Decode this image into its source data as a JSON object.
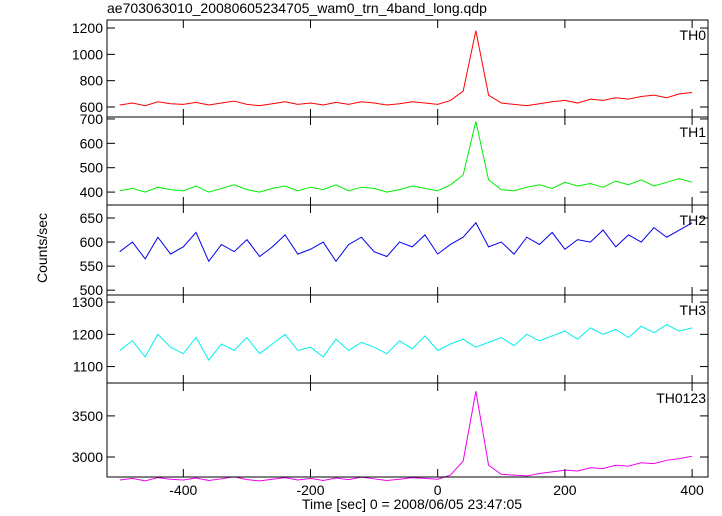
{
  "chart_data": {
    "type": "line",
    "title": "ae703063010_20080605234705_wam0_trn_4band_long.qdp",
    "xlabel": "Time [sec] 0 = 2008/06/05 23:47:05",
    "ylabel": "Counts/sec",
    "x": [
      -500,
      -480,
      -460,
      -440,
      -420,
      -400,
      -380,
      -360,
      -340,
      -320,
      -300,
      -280,
      -260,
      -240,
      -220,
      -200,
      -180,
      -160,
      -140,
      -120,
      -100,
      -80,
      -60,
      -40,
      -20,
      0,
      20,
      40,
      60,
      80,
      100,
      120,
      140,
      160,
      180,
      200,
      220,
      240,
      260,
      280,
      300,
      320,
      340,
      360,
      380,
      400
    ],
    "xlim": [
      -520,
      425
    ],
    "xticks": [
      -400,
      -200,
      0,
      200,
      400
    ],
    "series": [
      {
        "name": "TH0",
        "color": "#ff0000",
        "ylim": [
          524,
          1261
        ],
        "yticks": [
          600,
          800,
          1000,
          1200
        ],
        "values": [
          615,
          630,
          610,
          640,
          625,
          620,
          635,
          615,
          630,
          645,
          620,
          610,
          625,
          640,
          620,
          630,
          615,
          635,
          620,
          640,
          630,
          615,
          625,
          640,
          630,
          620,
          650,
          720,
          1180,
          690,
          630,
          620,
          610,
          625,
          640,
          650,
          630,
          660,
          650,
          670,
          660,
          680,
          690,
          670,
          700,
          710
        ]
      },
      {
        "name": "TH1",
        "color": "#00ee00",
        "ylim": [
          347,
          708
        ],
        "yticks": [
          400,
          500,
          600,
          700
        ],
        "values": [
          405,
          415,
          400,
          420,
          410,
          405,
          425,
          400,
          415,
          430,
          410,
          400,
          415,
          425,
          405,
          420,
          410,
          430,
          405,
          420,
          415,
          400,
          410,
          425,
          415,
          405,
          430,
          470,
          690,
          450,
          410,
          405,
          420,
          430,
          415,
          440,
          425,
          435,
          420,
          445,
          430,
          450,
          425,
          440,
          455,
          440
        ]
      },
      {
        "name": "TH2",
        "color": "#0000ee",
        "ylim": [
          490,
          677
        ],
        "yticks": [
          500,
          550,
          600,
          650
        ],
        "values": [
          580,
          600,
          565,
          610,
          575,
          590,
          620,
          560,
          595,
          580,
          605,
          570,
          590,
          615,
          575,
          585,
          600,
          560,
          595,
          610,
          580,
          570,
          600,
          590,
          615,
          575,
          595,
          610,
          640,
          590,
          600,
          575,
          610,
          595,
          620,
          585,
          605,
          600,
          625,
          590,
          615,
          600,
          630,
          610,
          625,
          640
        ]
      },
      {
        "name": "TH3",
        "color": "#00eeee",
        "ylim": [
          1049,
          1322
        ],
        "yticks": [
          1100,
          1200,
          1300
        ],
        "values": [
          1150,
          1180,
          1130,
          1200,
          1160,
          1140,
          1190,
          1120,
          1170,
          1150,
          1190,
          1140,
          1170,
          1200,
          1150,
          1160,
          1130,
          1185,
          1150,
          1175,
          1160,
          1140,
          1180,
          1155,
          1195,
          1150,
          1170,
          1185,
          1160,
          1175,
          1190,
          1165,
          1200,
          1180,
          1195,
          1210,
          1185,
          1220,
          1200,
          1215,
          1190,
          1225,
          1205,
          1230,
          1210,
          1220
        ]
      },
      {
        "name": "TH0123",
        "color": "#ee00ee",
        "ylim": [
          2757,
          3900
        ],
        "yticks": [
          3000,
          3500
        ],
        "values": [
          2720,
          2740,
          2710,
          2750,
          2730,
          2720,
          2745,
          2715,
          2735,
          2760,
          2725,
          2710,
          2730,
          2750,
          2720,
          2740,
          2715,
          2745,
          2725,
          2755,
          2735,
          2715,
          2730,
          2750,
          2740,
          2730,
          2780,
          2950,
          3800,
          2900,
          2790,
          2780,
          2770,
          2800,
          2820,
          2840,
          2830,
          2870,
          2860,
          2900,
          2890,
          2930,
          2920,
          2960,
          2980,
          3010
        ]
      }
    ]
  }
}
